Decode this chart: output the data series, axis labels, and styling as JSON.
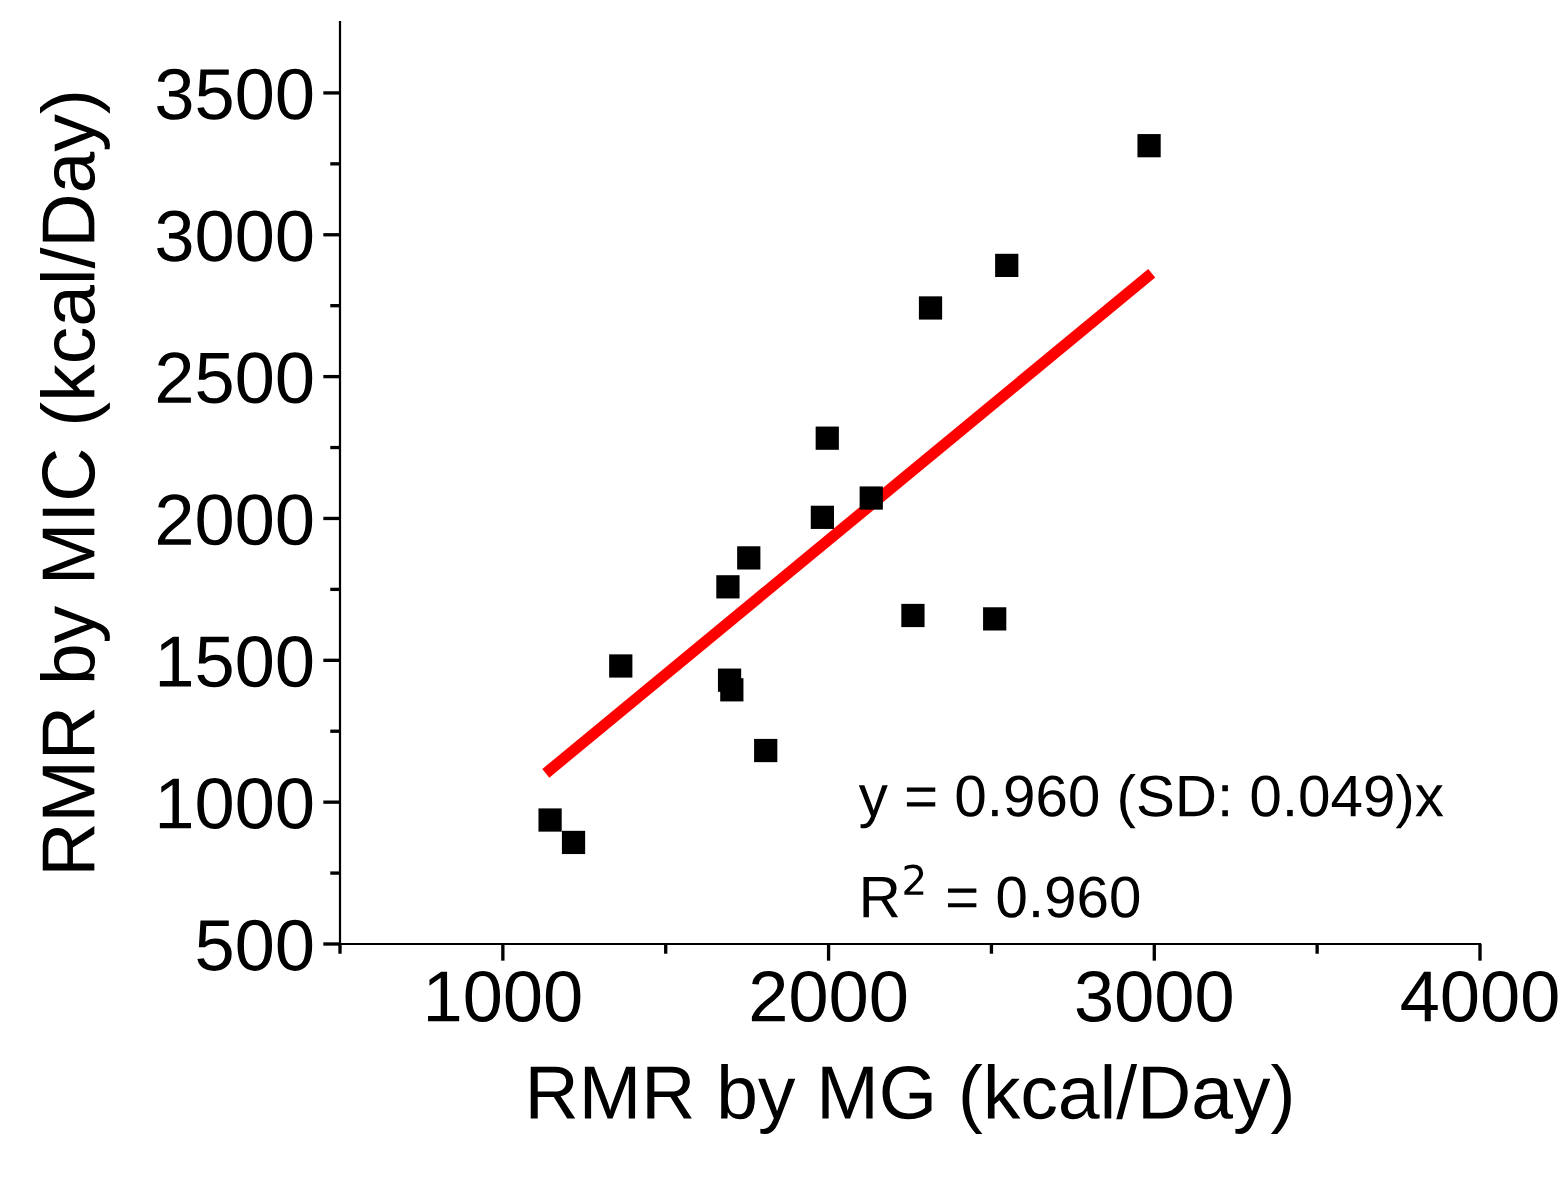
{
  "chart_data": {
    "type": "scatter",
    "xlabel": "RMR by MG (kcal/Day)",
    "ylabel": "RMR by MIC (kcal/Day)",
    "xlim": [
      500,
      4000
    ],
    "ylim": [
      500,
      3750
    ],
    "xticks": [
      {
        "value": 500,
        "label": null
      },
      1000,
      {
        "value": 1500,
        "label": null
      },
      2000,
      {
        "value": 2500,
        "label": null
      },
      3000,
      {
        "value": 3500,
        "label": null
      },
      4000
    ],
    "yticks": [
      500,
      {
        "value": 750,
        "label": null
      },
      1000,
      {
        "value": 1250,
        "label": null
      },
      1500,
      {
        "value": 1750,
        "label": null
      },
      2000,
      {
        "value": 2250,
        "label": null
      },
      2500,
      {
        "value": 2750,
        "label": null
      },
      3000,
      {
        "value": 3250,
        "label": null
      },
      3500
    ],
    "marker": "square",
    "grid": false,
    "series": [
      {
        "color": "#000000",
        "x": [
          2984,
          2547,
          2313,
          1996,
          2131,
          1981,
          1755,
          1691,
          2259,
          2510,
          1362,
          1696,
          1703,
          1807,
          1145,
          1217
        ],
        "values": [
          3314,
          2892,
          2742,
          2283,
          2072,
          2004,
          1861,
          1759,
          1658,
          1646,
          1480,
          1430,
          1396,
          1182,
          937,
          858
        ]
      },
      {
        "type": "line",
        "color": "#ff0000",
        "marker": "none",
        "line_style": "solid",
        "x": [
          1145,
          2979
        ],
        "values": [
          1114,
          2852
        ]
      }
    ],
    "annotations": [
      "y = 0.960 (SD: 0.049)x",
      "R$^{2}$ = 0.960"
    ]
  }
}
